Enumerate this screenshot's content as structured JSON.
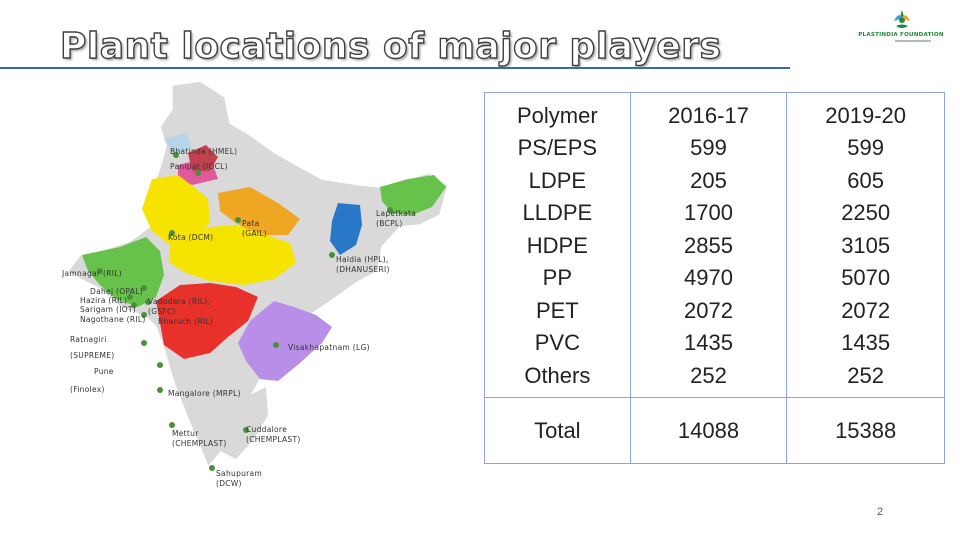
{
  "slide": {
    "title": "Plant locations of major players",
    "page_number": "2"
  },
  "logo": {
    "text": "PLASTINDIA FOUNDATION",
    "icon": "plastindia-logo-icon",
    "color": "#1f8a3a"
  },
  "map": {
    "labels": [
      "Bhatinda (HMEL)",
      "Panipat (IOCL)",
      "Pata\n(GAIL)",
      "Kota (DCM)",
      "Lapetkata\n(BCPL)",
      "Haldia (HPL),\n(DHANUSERI)",
      "Jamnagar (RIL)",
      "Dahej (OPAL)",
      "Hazira (RIL)",
      "Sarigam (IOT)",
      "Nagothane (RIL)",
      "Vadodara (RIL),\n(GSFC)",
      "Bharuch (RIL)",
      "Ratnagiri",
      "(SUPREME)",
      "Pune",
      "(Finolex)",
      "Visakhapatnam (LG)",
      "Mangalore (MRPL)",
      "Mettur\n(CHEMPLAST)",
      "Cuddalore\n(CHEMPLAST)",
      "Sahupuram\n(DCW)"
    ],
    "marker_color": "#4a8f3a"
  },
  "table": {
    "header": [
      "Polymer",
      "2016-17",
      "2019-20"
    ],
    "rows": [
      [
        "PS/EPS",
        "599",
        "599"
      ],
      [
        "LDPE",
        "205",
        "605"
      ],
      [
        "LLDPE",
        "1700",
        "2250"
      ],
      [
        "HDPE",
        "2855",
        "3105"
      ],
      [
        "PP",
        "4970",
        "5070"
      ],
      [
        "PET",
        "2072",
        "2072"
      ],
      [
        "PVC",
        "1435",
        "1435"
      ],
      [
        "Others",
        "252",
        "252"
      ]
    ],
    "total": [
      "Total",
      "14088",
      "15388"
    ],
    "border_color": "#8fa4d6"
  }
}
